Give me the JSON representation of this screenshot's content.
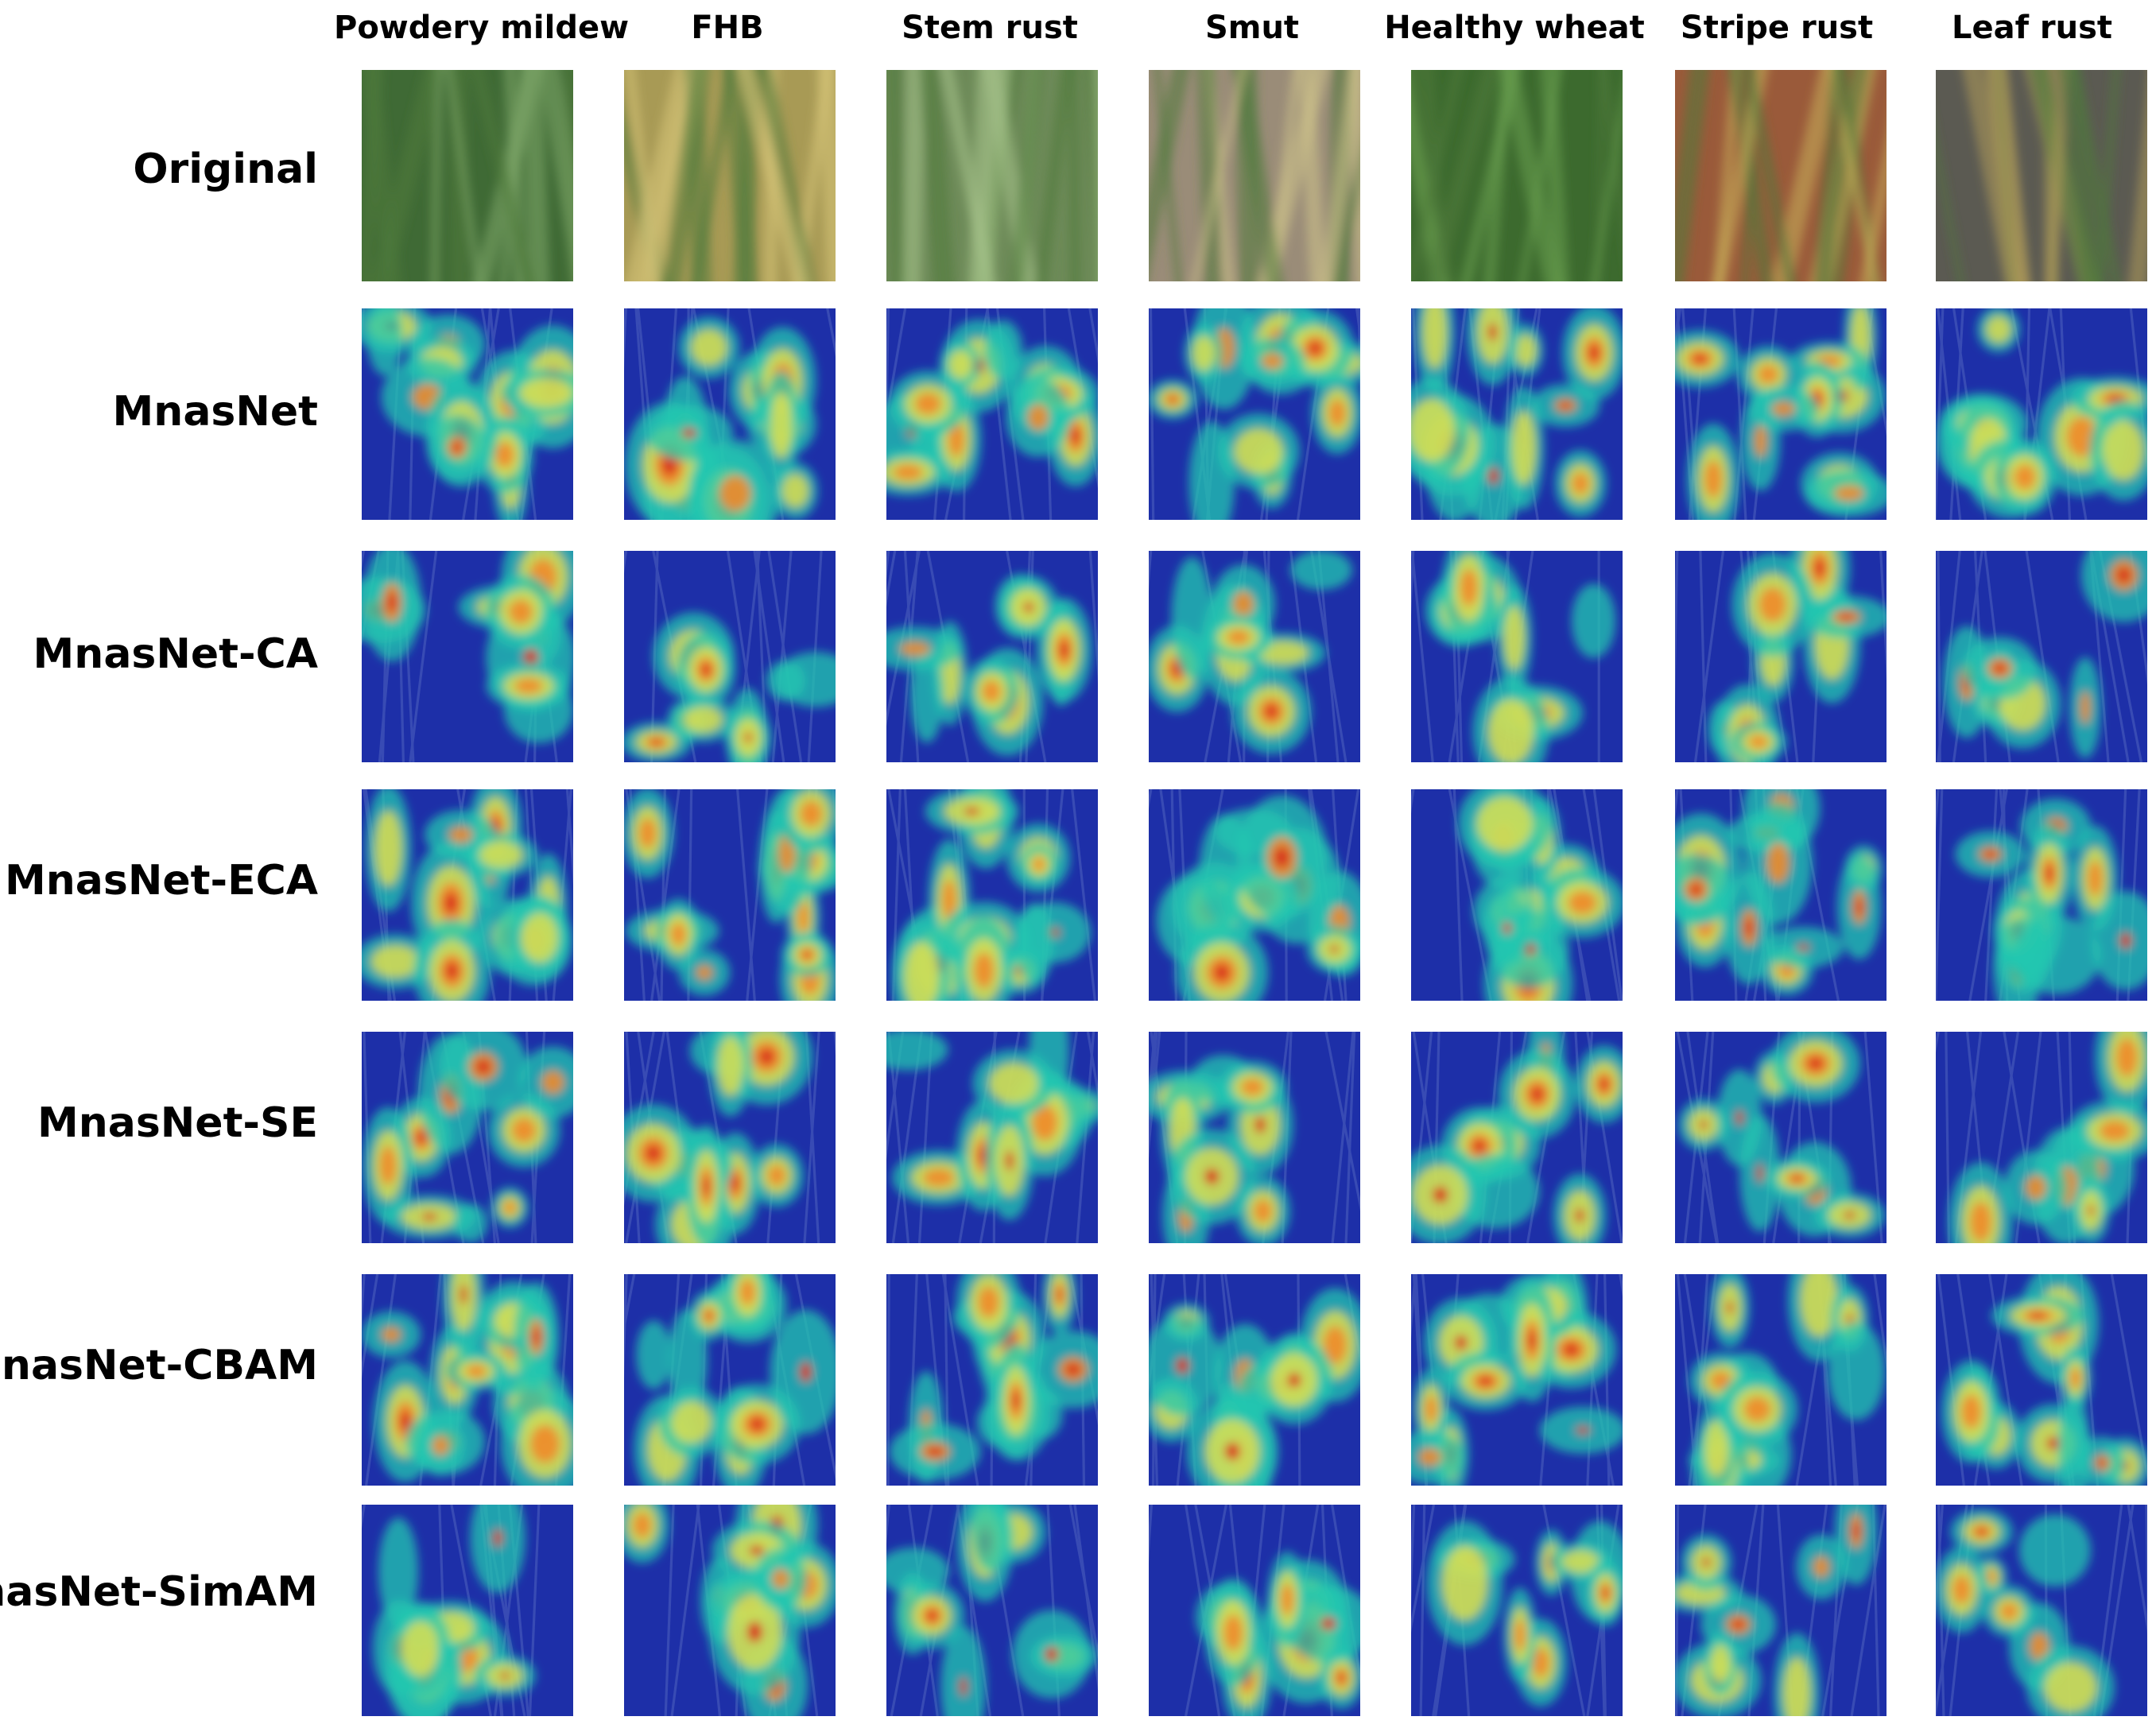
{
  "columns": [
    {
      "label": "Powdery mildew"
    },
    {
      "label": "FHB"
    },
    {
      "label": "Stem rust"
    },
    {
      "label": "Smut"
    },
    {
      "label": "Healthy wheat"
    },
    {
      "label": "Stripe rust"
    },
    {
      "label": "Leaf rust"
    }
  ],
  "rows": [
    {
      "label": "Original",
      "kind": "photo"
    },
    {
      "label": "MnasNet",
      "kind": "heatmap"
    },
    {
      "label": "MnasNet-CA",
      "kind": "heatmap"
    },
    {
      "label": "MnasNet-ECA",
      "kind": "heatmap"
    },
    {
      "label": "MnasNet-SE",
      "kind": "heatmap"
    },
    {
      "label": "MnasNet-CBAM",
      "kind": "heatmap"
    },
    {
      "label": "MnasNet-SimAM",
      "kind": "heatmap"
    }
  ],
  "colors": {
    "heatmap_low": "#1d2fa8",
    "heatmap_mid": "#22c7b0",
    "heatmap_high_1": "#e8e04a",
    "heatmap_high_2": "#f08a2a",
    "heatmap_peak": "#d8261c",
    "grass_green": "#4f7a3a",
    "wheat_gold": "#c9b56a",
    "soil_brown": "#8a6a4a",
    "stripe_red": "#a85a3a"
  }
}
